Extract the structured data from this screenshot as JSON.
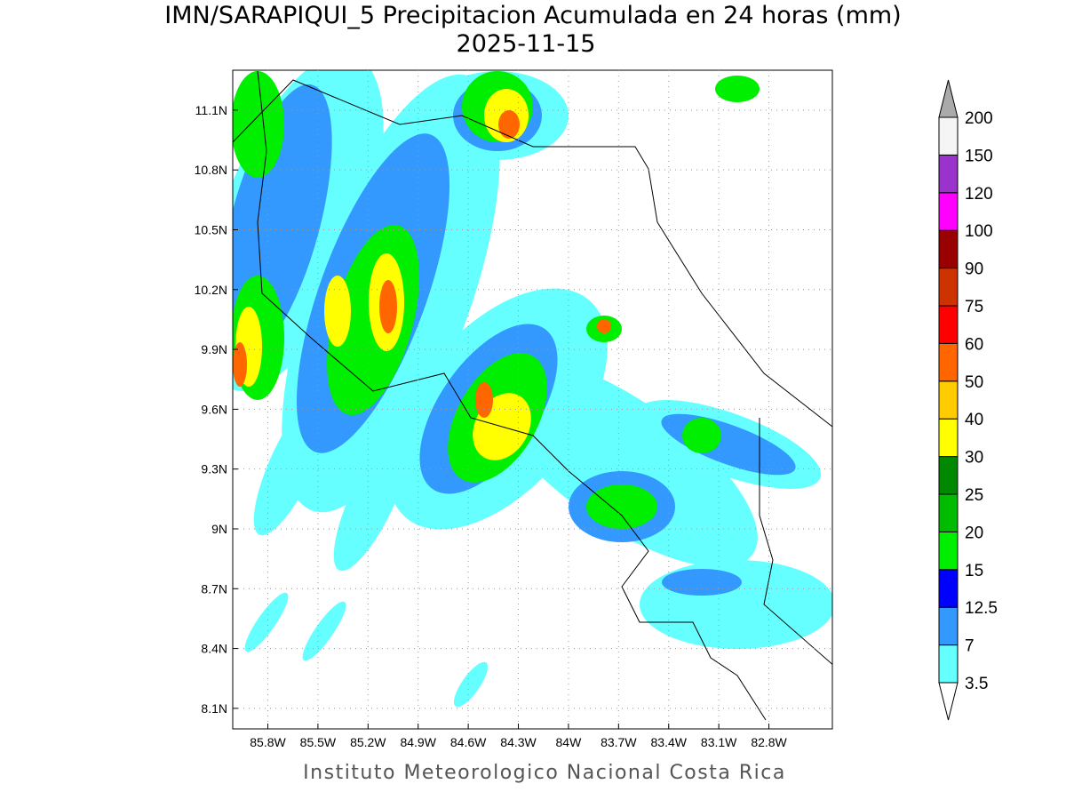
{
  "title": "IMN/SARAPIQUI_5 Precipitacion Acumulada en 24 horas (mm)",
  "date": "2025-11-15",
  "map": {
    "xlim": [
      -86.01,
      -82.42
    ],
    "ylim": [
      7.997,
      11.3
    ],
    "xticks": [
      {
        "value": -85.8,
        "label": "85.8W"
      },
      {
        "value": -85.5,
        "label": "85.5W"
      },
      {
        "value": -85.2,
        "label": "85.2W"
      },
      {
        "value": -84.9,
        "label": "84.9W"
      },
      {
        "value": -84.6,
        "label": "84.6W"
      },
      {
        "value": -84.3,
        "label": "84.3W"
      },
      {
        "value": -84,
        "label": "84W"
      },
      {
        "value": -83.7,
        "label": "83.7W"
      },
      {
        "value": -83.4,
        "label": "83.4W"
      },
      {
        "value": -83.1,
        "label": "83.1W"
      },
      {
        "value": -82.8,
        "label": "82.8W"
      }
    ],
    "yticks": [
      {
        "value": 11.1,
        "label": "11.1N"
      },
      {
        "value": 10.8,
        "label": "10.8N"
      },
      {
        "value": 10.5,
        "label": "10.5N"
      },
      {
        "value": 10.2,
        "label": "10.2N"
      },
      {
        "value": 9.9,
        "label": "9.9N"
      },
      {
        "value": 9.6,
        "label": "9.6N"
      },
      {
        "value": 9.3,
        "label": "9.3N"
      },
      {
        "value": 9,
        "label": "9N"
      },
      {
        "value": 8.7,
        "label": "8.7N"
      },
      {
        "value": 8.4,
        "label": "8.4N"
      },
      {
        "value": 8.1,
        "label": "8.1N"
      }
    ]
  },
  "colorbar": {
    "levels": [
      3.5,
      7,
      12.5,
      15,
      20,
      25,
      30,
      40,
      50,
      60,
      75,
      90,
      100,
      120,
      150,
      200
    ],
    "colors": [
      "#66ffff",
      "#3399ff",
      "#0000ff",
      "#00ee00",
      "#00bb00",
      "#008800",
      "#ffff00",
      "#ffcc00",
      "#ff6600",
      "#ff0000",
      "#cc3300",
      "#990000",
      "#ff00ff",
      "#9933cc",
      "#f5f5f5"
    ],
    "under_color": "#ffffff",
    "over_color": "#aaaaaa"
  },
  "footer": "Instituto Meteorologico Nacional Costa Rica"
}
